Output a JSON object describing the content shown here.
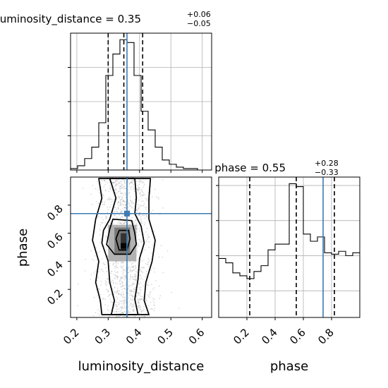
{
  "chart_data": [
    {
      "type": "bar",
      "panel": "luminosity_distance marginal histogram",
      "title": {
        "base": "luminosity_distance = 0.35",
        "sup": "+0.06",
        "sub": "−0.05"
      },
      "xlim": [
        0.18,
        0.63
      ],
      "x_ticks": [
        0.2,
        0.3,
        0.4,
        0.5,
        0.6
      ],
      "bin_edges": [
        0.18,
        0.2025,
        0.225,
        0.2475,
        0.27,
        0.2925,
        0.315,
        0.3375,
        0.36,
        0.3825,
        0.405,
        0.4275,
        0.45,
        0.4725,
        0.495,
        0.5175,
        0.54,
        0.5625,
        0.585,
        0.6075,
        0.63
      ],
      "values": [
        1,
        3,
        8,
        16,
        33,
        66,
        81,
        91,
        89,
        66,
        41,
        28,
        16,
        7,
        4,
        2,
        1,
        1,
        0,
        0
      ],
      "quantile_lines": [
        0.3,
        0.35,
        0.41
      ],
      "truth": 0.36,
      "grid": true
    },
    {
      "type": "bar",
      "panel": "phase marginal histogram",
      "title": {
        "base": "phase = 0.55",
        "sup": "+0.28",
        "sub": "−0.33"
      },
      "xlim": [
        0.0,
        1.0
      ],
      "x_ticks": [
        0.2,
        0.4,
        0.6,
        0.8
      ],
      "x_tick_labels": [
        "0.2",
        "0.4",
        "0.6",
        "0.8"
      ],
      "xlabel": "phase",
      "bin_edges": [
        0.0,
        0.05,
        0.1,
        0.15,
        0.2,
        0.25,
        0.3,
        0.35,
        0.4,
        0.45,
        0.5,
        0.55,
        0.6,
        0.65,
        0.7,
        0.75,
        0.8,
        0.85,
        0.9,
        0.95,
        1.0
      ],
      "values": [
        41,
        38,
        31,
        29,
        27,
        32,
        36,
        47,
        51,
        51,
        93,
        91,
        58,
        53,
        56,
        45,
        44,
        46,
        43,
        45
      ],
      "quantile_lines": [
        0.22,
        0.55,
        0.82
      ],
      "truth": 0.74,
      "grid": true
    },
    {
      "type": "heatmap",
      "panel": "2D density (luminosity_distance vs phase)",
      "xlim": [
        0.18,
        0.63
      ],
      "ylim": [
        0.0,
        1.0
      ],
      "x_ticks": [
        0.2,
        0.3,
        0.4,
        0.5,
        0.6
      ],
      "x_tick_labels": [
        "0.2",
        "0.3",
        "0.4",
        "0.5",
        "0.6"
      ],
      "y_ticks": [
        0.2,
        0.4,
        0.6,
        0.8
      ],
      "y_tick_labels": [
        "0.2",
        "0.4",
        "0.6",
        "0.8"
      ],
      "xlabel": "luminosity_distance",
      "ylabel": "phase",
      "truth": {
        "x": 0.36,
        "y": 0.74
      },
      "density_blocks": [
        {
          "x": [
            0.3,
            0.39
          ],
          "y": [
            0.4,
            0.66
          ],
          "level": 0.25
        },
        {
          "x": [
            0.32,
            0.37
          ],
          "y": [
            0.45,
            0.64
          ],
          "level": 0.5
        },
        {
          "x": [
            0.34,
            0.36
          ],
          "y": [
            0.48,
            0.6
          ],
          "level": 0.8
        },
        {
          "x": [
            0.34,
            0.36
          ],
          "y": [
            0.49,
            0.53
          ],
          "level": 1.0
        }
      ],
      "contours": [
        [
          [
            0.335,
            0.62
          ],
          [
            0.365,
            0.62
          ],
          [
            0.37,
            0.56
          ],
          [
            0.36,
            0.48
          ],
          [
            0.335,
            0.48
          ],
          [
            0.325,
            0.56
          ]
        ],
        [
          [
            0.315,
            0.7
          ],
          [
            0.375,
            0.69
          ],
          [
            0.385,
            0.6
          ],
          [
            0.39,
            0.52
          ],
          [
            0.37,
            0.45
          ],
          [
            0.32,
            0.45
          ],
          [
            0.295,
            0.52
          ],
          [
            0.305,
            0.63
          ]
        ],
        [
          [
            0.305,
            0.99
          ],
          [
            0.325,
            0.85
          ],
          [
            0.305,
            0.7
          ],
          [
            0.285,
            0.62
          ],
          [
            0.28,
            0.53
          ],
          [
            0.3,
            0.4
          ],
          [
            0.305,
            0.25
          ],
          [
            0.32,
            0.12
          ],
          [
            0.31,
            0.02
          ],
          [
            0.395,
            0.02
          ],
          [
            0.385,
            0.13
          ],
          [
            0.395,
            0.27
          ],
          [
            0.4,
            0.42
          ],
          [
            0.415,
            0.53
          ],
          [
            0.405,
            0.65
          ],
          [
            0.385,
            0.74
          ],
          [
            0.39,
            0.85
          ],
          [
            0.385,
            0.99
          ]
        ],
        [
          [
            0.27,
            0.99
          ],
          [
            0.28,
            0.85
          ],
          [
            0.26,
            0.7
          ],
          [
            0.25,
            0.55
          ],
          [
            0.27,
            0.4
          ],
          [
            0.26,
            0.25
          ],
          [
            0.275,
            0.12
          ],
          [
            0.28,
            0.02
          ],
          [
            0.43,
            0.02
          ],
          [
            0.415,
            0.12
          ],
          [
            0.42,
            0.25
          ],
          [
            0.44,
            0.4
          ],
          [
            0.45,
            0.55
          ],
          [
            0.43,
            0.7
          ],
          [
            0.43,
            0.85
          ],
          [
            0.435,
            0.99
          ]
        ]
      ],
      "scatter_x_range": [
        0.2,
        0.62
      ]
    }
  ]
}
